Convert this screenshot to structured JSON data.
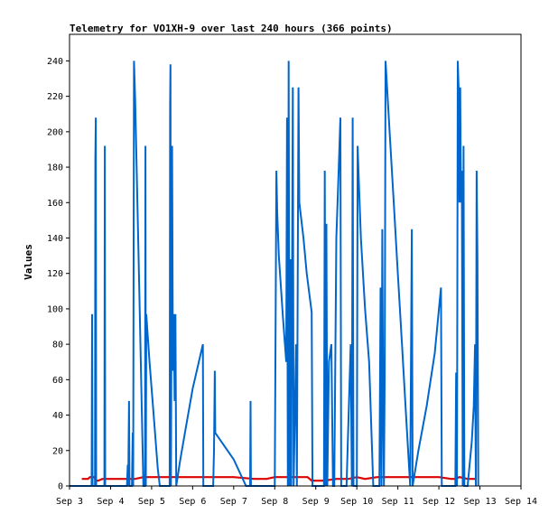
{
  "chart_data": {
    "type": "line",
    "title": "Telemetry for VO1XH-9 over last 240 hours (366 points)",
    "xlabel": "",
    "ylabel": "Values",
    "x_ticks": [
      "Sep 3",
      "Sep 4",
      "Sep 5",
      "Sep 6",
      "Sep 7",
      "Sep 8",
      "Sep 9",
      "Sep 10",
      "Sep 11",
      "Sep 12",
      "Sep 13",
      "Sep 14"
    ],
    "y_ticks": [
      0,
      20,
      40,
      60,
      80,
      100,
      120,
      140,
      160,
      180,
      200,
      220,
      240
    ],
    "xlim_days": [
      3,
      14
    ],
    "ylim": [
      0,
      255
    ],
    "grid": false,
    "legend": "none",
    "series": [
      {
        "color": "#0066cc",
        "points": [
          [
            3.0,
            0
          ],
          [
            3.54,
            0
          ],
          [
            3.55,
            97
          ],
          [
            3.56,
            0
          ],
          [
            3.62,
            0
          ],
          [
            3.63,
            184
          ],
          [
            3.64,
            208
          ],
          [
            3.65,
            0
          ],
          [
            3.85,
            0
          ],
          [
            3.86,
            192
          ],
          [
            3.87,
            0
          ],
          [
            4.4,
            0
          ],
          [
            4.42,
            12
          ],
          [
            4.43,
            0
          ],
          [
            4.45,
            48
          ],
          [
            4.46,
            0
          ],
          [
            4.52,
            0
          ],
          [
            4.54,
            30
          ],
          [
            4.55,
            0
          ],
          [
            4.57,
            240
          ],
          [
            4.6,
            218
          ],
          [
            4.7,
            110
          ],
          [
            4.8,
            0
          ],
          [
            4.84,
            0
          ],
          [
            4.85,
            192
          ],
          [
            4.86,
            0
          ],
          [
            4.87,
            97
          ],
          [
            4.95,
            70
          ],
          [
            5.05,
            40
          ],
          [
            5.15,
            10
          ],
          [
            5.2,
            0
          ],
          [
            5.44,
            0
          ],
          [
            5.45,
            215
          ],
          [
            5.46,
            238
          ],
          [
            5.47,
            0
          ],
          [
            5.5,
            192
          ],
          [
            5.52,
            65
          ],
          [
            5.54,
            97
          ],
          [
            5.56,
            48
          ],
          [
            5.58,
            97
          ],
          [
            5.6,
            0
          ],
          [
            5.7,
            15
          ],
          [
            5.85,
            35
          ],
          [
            6.0,
            55
          ],
          [
            6.15,
            70
          ],
          [
            6.25,
            80
          ],
          [
            6.26,
            0
          ],
          [
            6.5,
            0
          ],
          [
            6.52,
            20
          ],
          [
            6.54,
            65
          ],
          [
            6.55,
            30
          ],
          [
            7.0,
            15
          ],
          [
            7.3,
            0
          ],
          [
            7.4,
            0
          ],
          [
            7.41,
            48
          ],
          [
            7.42,
            0
          ],
          [
            8.0,
            0
          ],
          [
            8.02,
            88
          ],
          [
            8.04,
            178
          ],
          [
            8.06,
            155
          ],
          [
            8.1,
            130
          ],
          [
            8.2,
            95
          ],
          [
            8.28,
            70
          ],
          [
            8.3,
            208
          ],
          [
            8.32,
            0
          ],
          [
            8.34,
            240
          ],
          [
            8.36,
            0
          ],
          [
            8.38,
            128
          ],
          [
            8.4,
            0
          ],
          [
            8.44,
            225
          ],
          [
            8.46,
            0
          ],
          [
            8.52,
            80
          ],
          [
            8.54,
            0
          ],
          [
            8.58,
            225
          ],
          [
            8.6,
            160
          ],
          [
            8.7,
            140
          ],
          [
            8.78,
            120
          ],
          [
            8.9,
            98
          ],
          [
            8.92,
            0
          ],
          [
            9.2,
            0
          ],
          [
            9.22,
            178
          ],
          [
            9.24,
            0
          ],
          [
            9.26,
            148
          ],
          [
            9.28,
            0
          ],
          [
            9.32,
            70
          ],
          [
            9.38,
            80
          ],
          [
            9.42,
            0
          ],
          [
            9.45,
            0
          ],
          [
            9.5,
            140
          ],
          [
            9.56,
            180
          ],
          [
            9.6,
            208
          ],
          [
            9.62,
            0
          ],
          [
            9.75,
            0
          ],
          [
            9.85,
            80
          ],
          [
            9.88,
            0
          ],
          [
            9.9,
            208
          ],
          [
            9.92,
            0
          ],
          [
            10.0,
            0
          ],
          [
            10.02,
            192
          ],
          [
            10.04,
            178
          ],
          [
            10.1,
            140
          ],
          [
            10.2,
            100
          ],
          [
            10.3,
            70
          ],
          [
            10.4,
            0
          ],
          [
            10.55,
            0
          ],
          [
            10.58,
            112
          ],
          [
            10.6,
            0
          ],
          [
            10.62,
            145
          ],
          [
            10.64,
            50
          ],
          [
            10.66,
            0
          ],
          [
            10.68,
            65
          ],
          [
            10.7,
            240
          ],
          [
            10.8,
            200
          ],
          [
            10.9,
            160
          ],
          [
            11.0,
            120
          ],
          [
            11.1,
            80
          ],
          [
            11.2,
            40
          ],
          [
            11.3,
            0
          ],
          [
            11.34,
            145
          ],
          [
            11.36,
            0
          ],
          [
            11.5,
            20
          ],
          [
            11.7,
            45
          ],
          [
            11.9,
            75
          ],
          [
            12.05,
            112
          ],
          [
            12.07,
            0
          ],
          [
            12.4,
            0
          ],
          [
            12.42,
            64
          ],
          [
            12.44,
            0
          ],
          [
            12.46,
            240
          ],
          [
            12.48,
            225
          ],
          [
            12.5,
            160
          ],
          [
            12.52,
            225
          ],
          [
            12.54,
            160
          ],
          [
            12.56,
            178
          ],
          [
            12.58,
            0
          ],
          [
            12.6,
            192
          ],
          [
            12.62,
            0
          ],
          [
            12.7,
            0
          ],
          [
            12.8,
            25
          ],
          [
            12.85,
            45
          ],
          [
            12.88,
            80
          ],
          [
            12.9,
            0
          ],
          [
            12.92,
            178
          ],
          [
            12.94,
            128
          ],
          [
            12.96,
            0
          ]
        ]
      },
      {
        "color": "#dd0000",
        "points": [
          [
            3.3,
            4
          ],
          [
            3.4,
            4
          ],
          [
            3.45,
            4
          ],
          [
            3.5,
            5
          ],
          [
            3.6,
            5
          ],
          [
            3.65,
            3
          ],
          [
            3.7,
            3
          ],
          [
            3.8,
            4
          ],
          [
            4.0,
            4
          ],
          [
            4.2,
            4
          ],
          [
            4.4,
            4
          ],
          [
            4.6,
            4
          ],
          [
            4.8,
            5
          ],
          [
            5.0,
            5
          ],
          [
            5.5,
            5
          ],
          [
            6.0,
            5
          ],
          [
            6.5,
            5
          ],
          [
            7.0,
            5
          ],
          [
            7.5,
            4
          ],
          [
            7.8,
            4
          ],
          [
            8.0,
            5
          ],
          [
            8.5,
            5
          ],
          [
            8.8,
            5
          ],
          [
            8.9,
            3
          ],
          [
            9.2,
            3
          ],
          [
            9.5,
            4
          ],
          [
            9.8,
            4
          ],
          [
            10.0,
            5
          ],
          [
            10.2,
            4
          ],
          [
            10.5,
            5
          ],
          [
            11.0,
            5
          ],
          [
            11.5,
            5
          ],
          [
            12.0,
            5
          ],
          [
            12.3,
            4
          ],
          [
            12.4,
            4
          ],
          [
            12.5,
            5
          ],
          [
            12.7,
            4
          ],
          [
            12.9,
            4
          ]
        ]
      }
    ]
  }
}
